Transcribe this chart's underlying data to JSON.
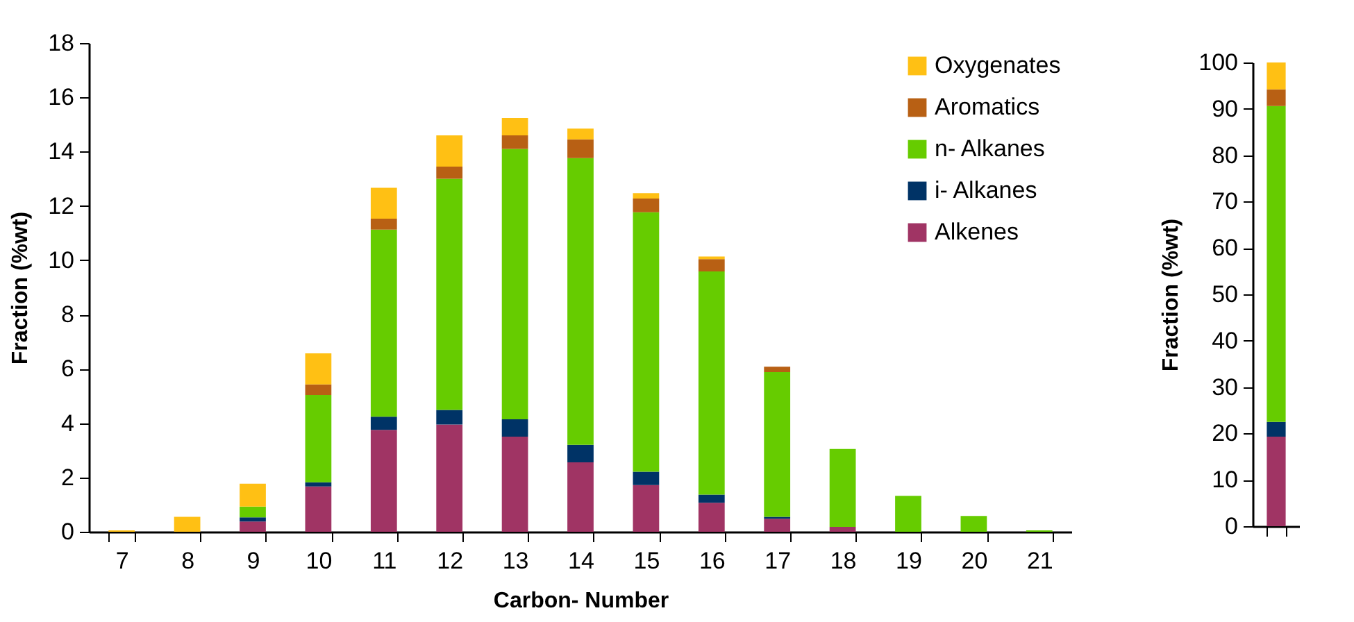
{
  "chart_data": [
    {
      "type": "bar",
      "stacked": true,
      "xlabel": "Carbon- Number",
      "ylabel": "Fraction (%wt)",
      "categories": [
        "7",
        "8",
        "9",
        "10",
        "11",
        "12",
        "13",
        "14",
        "15",
        "16",
        "17",
        "18",
        "19",
        "20",
        "21"
      ],
      "ylim": [
        0,
        18
      ],
      "yticks": [
        0,
        2,
        4,
        6,
        8,
        10,
        12,
        14,
        16,
        18
      ],
      "grid": false,
      "legend": "top right",
      "series": [
        {
          "name": "Alkenes",
          "color": "#a03464",
          "values": [
            0,
            0,
            0.38,
            1.67,
            3.75,
            3.95,
            3.5,
            2.56,
            1.72,
            1.07,
            0.48,
            0.18,
            0,
            0,
            0
          ]
        },
        {
          "name": "i- Alkanes",
          "color": "#003366",
          "values": [
            0,
            0,
            0.15,
            0.15,
            0.49,
            0.54,
            0.64,
            0.64,
            0.49,
            0.3,
            0.07,
            0,
            0,
            0,
            0
          ]
        },
        {
          "name": "n- Alkanes",
          "color": "#66cc00",
          "values": [
            0,
            0,
            0.4,
            3.22,
            6.89,
            8.51,
            9.96,
            10.56,
            9.56,
            8.22,
            5.33,
            2.87,
            1.32,
            0.58,
            0.05
          ]
        },
        {
          "name": "Aromatics",
          "color": "#b86014",
          "values": [
            0,
            0,
            0,
            0.39,
            0.4,
            0.45,
            0.5,
            0.69,
            0.5,
            0.45,
            0.2,
            0,
            0,
            0,
            0
          ]
        },
        {
          "name": "Oxygenates",
          "color": "#ffc014",
          "values": [
            0.05,
            0.55,
            0.84,
            1.14,
            1.14,
            1.15,
            0.64,
            0.4,
            0.2,
            0.1,
            0,
            0,
            0,
            0,
            0
          ]
        }
      ]
    },
    {
      "type": "bar",
      "stacked": true,
      "ylabel": "Fraction (%wt)",
      "categories": [
        null
      ],
      "ylim": [
        0,
        100
      ],
      "yticks": [
        0,
        10,
        20,
        30,
        40,
        50,
        60,
        70,
        80,
        90,
        100
      ],
      "grid": false,
      "tick_labels": "y",
      "series": [
        {
          "color": "#a03464",
          "values": [
            19.3
          ]
        },
        {
          "color": "#003366",
          "values": [
            3.2
          ]
        },
        {
          "color": "#66cc00",
          "values": [
            68.1
          ]
        },
        {
          "color": "#b86014",
          "values": [
            3.6
          ]
        },
        {
          "color": "#ffc014",
          "values": [
            5.8
          ]
        }
      ]
    }
  ]
}
